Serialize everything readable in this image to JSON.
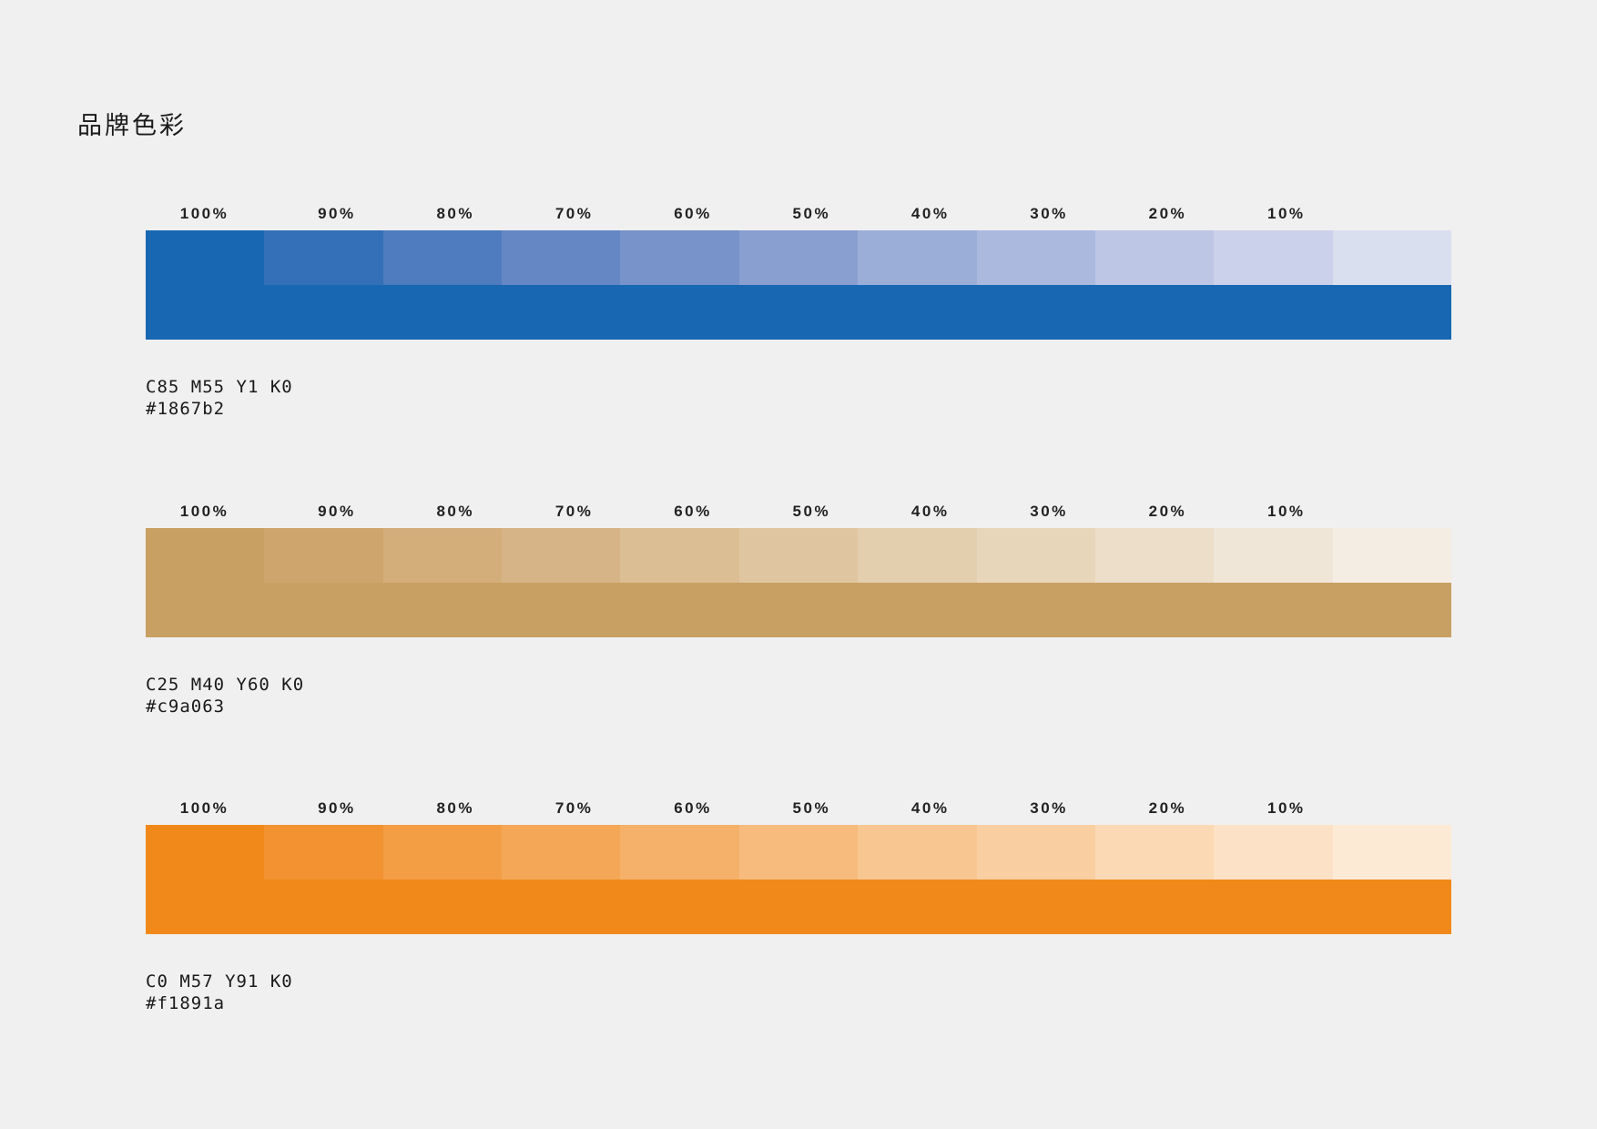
{
  "page": {
    "title": "品牌色彩"
  },
  "palettes": [
    {
      "cmyk": "C85 M55 Y1 K0",
      "hex": "#1867b2",
      "base_color": "#1867b2",
      "tints": [
        {
          "label": "100%",
          "color": "#1867b2"
        },
        {
          "label": "90%",
          "color": "#3370b7"
        },
        {
          "label": "80%",
          "color": "#4f7cbf"
        },
        {
          "label": "70%",
          "color": "#6588c5"
        },
        {
          "label": "60%",
          "color": "#7893c9"
        },
        {
          "label": "50%",
          "color": "#899fd0"
        },
        {
          "label": "40%",
          "color": "#9aaed8"
        },
        {
          "label": "30%",
          "color": "#abb9df"
        },
        {
          "label": "20%",
          "color": "#bdc6e5"
        },
        {
          "label": "10%",
          "color": "#dadfef"
        }
      ],
      "extra_tint": "#cbd1ea"
    },
    {
      "cmyk": "C25 M40 Y60 K0",
      "hex": "#c9a063",
      "base_color": "#c9a063",
      "tints": [
        {
          "label": "100%",
          "color": "#c9a063"
        },
        {
          "label": "90%",
          "color": "#cfa56e"
        },
        {
          "label": "80%",
          "color": "#d3ae7a"
        },
        {
          "label": "70%",
          "color": "#d7b487"
        },
        {
          "label": "60%",
          "color": "#dbbe93"
        },
        {
          "label": "50%",
          "color": "#e0c6a0"
        },
        {
          "label": "40%",
          "color": "#e3ceae"
        },
        {
          "label": "30%",
          "color": "#e8d6bb"
        },
        {
          "label": "20%",
          "color": "#ecdec9"
        },
        {
          "label": "10%",
          "color": "#f4ede3"
        }
      ],
      "extra_tint": "#f0e6d7"
    },
    {
      "cmyk": "C0 M57 Y91 K0",
      "hex": "#f1891a",
      "base_color": "#f1891a",
      "tints": [
        {
          "label": "100%",
          "color": "#f1891a"
        },
        {
          "label": "90%",
          "color": "#f29230"
        },
        {
          "label": "80%",
          "color": "#f39e45"
        },
        {
          "label": "70%",
          "color": "#f4a857"
        },
        {
          "label": "60%",
          "color": "#f5b16a"
        },
        {
          "label": "50%",
          "color": "#f6bb7d"
        },
        {
          "label": "40%",
          "color": "#f8c791"
        },
        {
          "label": "30%",
          "color": "#f9cfa2"
        },
        {
          "label": "20%",
          "color": "#fbd9b5"
        },
        {
          "label": "10%",
          "color": "#fdead5"
        }
      ],
      "extra_tint": "#fde1c6"
    }
  ]
}
